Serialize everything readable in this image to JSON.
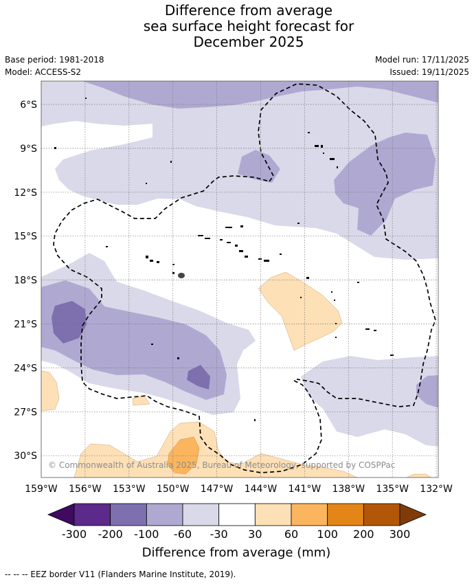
{
  "title": {
    "line1": "Difference from average",
    "line2": "sea surface height forecast for",
    "line3": "December 2025"
  },
  "meta": {
    "base_period": "Base period: 1981-2018",
    "model": "Model: ACCESS-S2",
    "model_run": "Model run: 17/11/2025",
    "issued": "Issued: 19/11/2025"
  },
  "map": {
    "latitude_labels": [
      "6°S",
      "9°S",
      "12°S",
      "15°S",
      "18°S",
      "21°S",
      "24°S",
      "27°S",
      "30°S"
    ],
    "longitude_labels": [
      "159°W",
      "156°W",
      "153°W",
      "150°W",
      "147°W",
      "144°W",
      "141°W",
      "138°W",
      "135°W",
      "132°W"
    ],
    "copyright": "© Commonwealth of Australia 2025, Bureau of Meteorology, supported by COSPPac"
  },
  "legend": {
    "tick_labels": [
      "-300",
      "-200",
      "-100",
      "-60",
      "-30",
      "30",
      "60",
      "100",
      "200",
      "300"
    ],
    "colors": [
      "#3f0a60",
      "#5b2a8a",
      "#7e6fae",
      "#afa9d2",
      "#d9d9ea",
      "#ffffff",
      "#fde0b6",
      "#fbb55e",
      "#e38617",
      "#b25708",
      "#7f3b08"
    ],
    "title": "Difference from average (mm)"
  },
  "footnote": "--  --  -- EEZ border V11 (Flanders Marine Institute, 2019)."
}
